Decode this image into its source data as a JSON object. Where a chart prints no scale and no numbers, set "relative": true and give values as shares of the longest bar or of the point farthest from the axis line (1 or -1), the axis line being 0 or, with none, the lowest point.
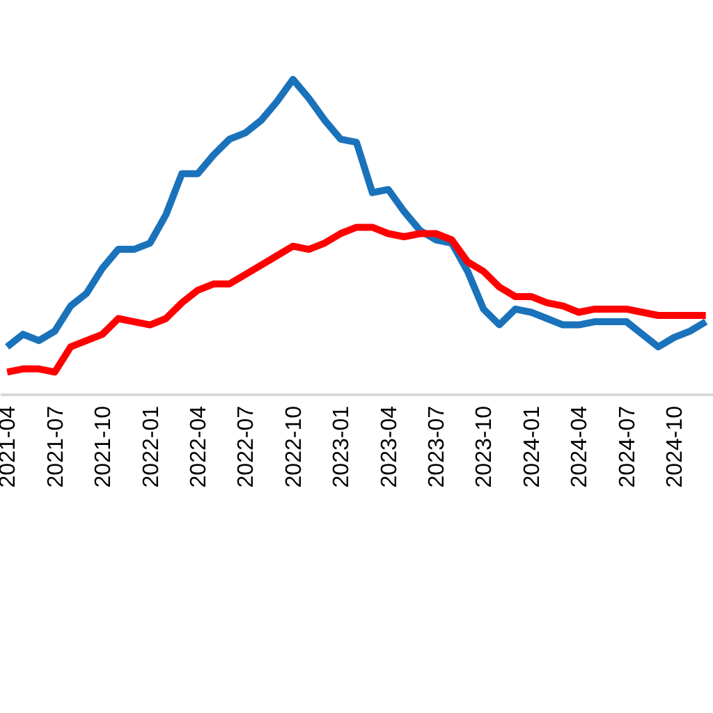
{
  "chart_data": {
    "type": "line",
    "relative": true,
    "marker": "none",
    "line_style": "solid",
    "categories": [
      "2021-04",
      null,
      null,
      "2021-07",
      null,
      null,
      "2021-10",
      null,
      null,
      "2022-01",
      null,
      null,
      "2022-04",
      null,
      null,
      "2022-07",
      null,
      null,
      "2022-10",
      null,
      null,
      "2023-01",
      null,
      null,
      "2023-04",
      null,
      null,
      "2023-07",
      null,
      null,
      "2023-10",
      null,
      null,
      "2024-01",
      null,
      null,
      "2024-04",
      null,
      null,
      "2024-07",
      null,
      null,
      "2024-10",
      null,
      null
    ],
    "series": [
      {
        "color": "#1a72bb",
        "values": [
          0.15,
          0.19,
          0.17,
          0.2,
          0.28,
          0.32,
          0.4,
          0.46,
          0.46,
          0.48,
          0.57,
          0.7,
          0.7,
          0.76,
          0.81,
          0.83,
          0.87,
          0.93,
          1,
          0.94,
          0.87,
          0.81,
          0.8,
          0.64,
          0.65,
          0.58,
          0.52,
          0.49,
          0.48,
          0.39,
          0.27,
          0.22,
          0.27,
          0.26,
          0.24,
          0.22,
          0.22,
          0.23,
          0.23,
          0.23,
          0.19,
          0.15,
          0.18,
          0.2,
          0.23
        ]
      },
      {
        "color": "#ff0000",
        "values": [
          0.07,
          0.08,
          0.08,
          0.07,
          0.15,
          0.17,
          0.19,
          0.24,
          0.23,
          0.22,
          0.24,
          0.29,
          0.33,
          0.35,
          0.35,
          0.38,
          0.41,
          0.44,
          0.47,
          0.46,
          0.48,
          0.51,
          0.53,
          0.53,
          0.51,
          0.5,
          0.51,
          0.51,
          0.49,
          0.42,
          0.39,
          0.34,
          0.31,
          0.31,
          0.29,
          0.28,
          0.26,
          0.27,
          0.27,
          0.27,
          0.26,
          0.25,
          0.25,
          0.25,
          0.25
        ]
      }
    ]
  }
}
